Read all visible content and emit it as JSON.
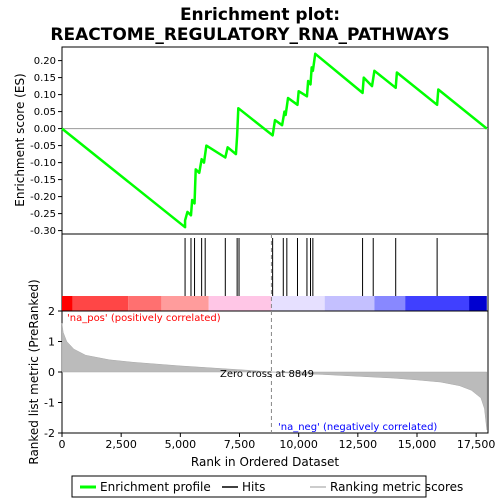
{
  "chart_data": {
    "type": "line",
    "title": "Enrichment plot:",
    "subtitle": "REACTOME_REGULATORY_RNA_PATHWAYS",
    "es_panel": {
      "ylabel": "Enrichment score (ES)",
      "ylim": [
        -0.31,
        0.24
      ],
      "yticks": [
        0.2,
        0.15,
        0.1,
        0.05,
        0.0,
        -0.05,
        -0.1,
        -0.15,
        -0.2,
        -0.25,
        -0.3
      ],
      "ytick_labels": [
        "0.20",
        "0.15",
        "0.10",
        "0.05",
        "0.00",
        "-0.05",
        "-0.10",
        "-0.15",
        "-0.20",
        "-0.25",
        "-0.30"
      ],
      "series_color": "#00ff00",
      "points": [
        [
          0,
          0.0
        ],
        [
          5200,
          -0.29
        ],
        [
          5200,
          -0.27
        ],
        [
          5300,
          -0.245
        ],
        [
          5450,
          -0.255
        ],
        [
          5500,
          -0.21
        ],
        [
          5600,
          -0.22
        ],
        [
          5650,
          -0.12
        ],
        [
          5800,
          -0.13
        ],
        [
          5900,
          -0.09
        ],
        [
          6000,
          -0.1
        ],
        [
          6100,
          -0.05
        ],
        [
          6900,
          -0.085
        ],
        [
          7000,
          -0.055
        ],
        [
          7350,
          -0.075
        ],
        [
          7400,
          -0.02
        ],
        [
          7450,
          0.06
        ],
        [
          8900,
          -0.02
        ],
        [
          9000,
          0.025
        ],
        [
          9300,
          0.01
        ],
        [
          9400,
          0.05
        ],
        [
          9450,
          0.04
        ],
        [
          9550,
          0.09
        ],
        [
          9950,
          0.07
        ],
        [
          10000,
          0.11
        ],
        [
          10350,
          0.095
        ],
        [
          10400,
          0.14
        ],
        [
          10500,
          0.13
        ],
        [
          10550,
          0.18
        ],
        [
          10600,
          0.17
        ],
        [
          10700,
          0.22
        ],
        [
          12700,
          0.105
        ],
        [
          12750,
          0.15
        ],
        [
          13100,
          0.125
        ],
        [
          13200,
          0.17
        ],
        [
          14100,
          0.12
        ],
        [
          14150,
          0.165
        ],
        [
          15850,
          0.07
        ],
        [
          15900,
          0.115
        ],
        [
          17950,
          0.0
        ]
      ]
    },
    "hits": [
      5200,
      5450,
      5600,
      5900,
      6050,
      6900,
      7400,
      7480,
      8900,
      9350,
      9500,
      9950,
      10350,
      10500,
      10600,
      12700,
      13150,
      14100,
      15850
    ],
    "rank_panel": {
      "ylabel": "Ranked list metric (PreRanked)",
      "ylim": [
        -2,
        2
      ],
      "yticks": [
        2,
        1,
        0,
        -1,
        -2
      ],
      "ytick_labels": [
        "2",
        "1",
        "0",
        "-1",
        "-2"
      ],
      "xlabel": "Rank in Ordered Dataset",
      "xlim": [
        0,
        18000
      ],
      "xticks": [
        0,
        2500,
        5000,
        7500,
        10000,
        12500,
        15000,
        17500
      ],
      "xtick_labels": [
        "0",
        "2,500",
        "5,000",
        "7,500",
        "10,000",
        "12,500",
        "15,000",
        "17,500"
      ],
      "total_rank": 17950,
      "zero_cross": 8849,
      "zero_cross_label": "Zero cross at 8849",
      "pos_label": "'na_pos' (positively correlated)",
      "neg_label": "'na_neg' (negatively correlated)",
      "pos_label_color": "#ff0000",
      "neg_label_color": "#0000ff",
      "metric_curve": [
        [
          0,
          1.6
        ],
        [
          50,
          1.3
        ],
        [
          200,
          1.0
        ],
        [
          500,
          0.75
        ],
        [
          1000,
          0.55
        ],
        [
          2000,
          0.4
        ],
        [
          3000,
          0.32
        ],
        [
          4000,
          0.26
        ],
        [
          5000,
          0.2
        ],
        [
          6000,
          0.15
        ],
        [
          7000,
          0.1
        ],
        [
          8000,
          0.05
        ],
        [
          8849,
          0.0
        ],
        [
          10000,
          -0.05
        ],
        [
          11000,
          -0.08
        ],
        [
          12000,
          -0.12
        ],
        [
          13000,
          -0.16
        ],
        [
          14000,
          -0.2
        ],
        [
          15000,
          -0.26
        ],
        [
          16000,
          -0.33
        ],
        [
          16800,
          -0.45
        ],
        [
          17300,
          -0.6
        ],
        [
          17700,
          -0.85
        ],
        [
          17850,
          -1.2
        ],
        [
          17950,
          -1.9
        ]
      ]
    },
    "color_bar": [
      {
        "start": 0,
        "end": 450,
        "color": "#ff0000"
      },
      {
        "start": 450,
        "end": 2800,
        "color": "#ff4646"
      },
      {
        "start": 2800,
        "end": 4200,
        "color": "#ff7070"
      },
      {
        "start": 4200,
        "end": 6200,
        "color": "#ff9c9c"
      },
      {
        "start": 6200,
        "end": 8849,
        "color": "#ffc6e6"
      },
      {
        "start": 8849,
        "end": 11100,
        "color": "#e6e0ff"
      },
      {
        "start": 11100,
        "end": 13200,
        "color": "#c4c0ff"
      },
      {
        "start": 13200,
        "end": 14500,
        "color": "#8888ff"
      },
      {
        "start": 14500,
        "end": 17200,
        "color": "#4040ff"
      },
      {
        "start": 17200,
        "end": 17950,
        "color": "#0000d0"
      }
    ],
    "legend": {
      "items": [
        {
          "label": "Enrichment profile",
          "color": "#00ff00",
          "kind": "line-thick"
        },
        {
          "label": "Hits",
          "color": "#000000",
          "kind": "line"
        },
        {
          "label": "Ranking metric scores",
          "color": "#bbbbbb",
          "kind": "line"
        }
      ],
      "placement": "bottom"
    }
  }
}
